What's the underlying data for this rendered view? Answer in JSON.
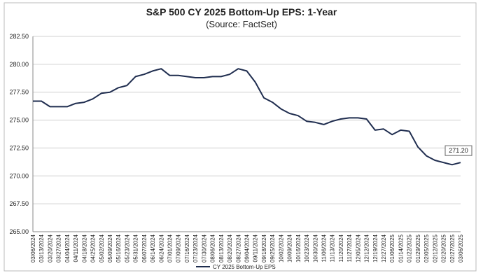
{
  "chart_data": {
    "type": "line",
    "title": "S&P 500 CY 2025 Bottom-Up EPS: 1-Year",
    "subtitle": "(Source: FactSet)",
    "categories": [
      "03/06/2024",
      "03/13/2024",
      "03/20/2024",
      "03/27/2024",
      "04/04/2024",
      "04/11/2024",
      "04/18/2024",
      "04/25/2024",
      "05/02/2024",
      "05/09/2024",
      "05/16/2024",
      "05/23/2024",
      "05/31/2024",
      "06/07/2024",
      "06/14/2024",
      "06/24/2024",
      "07/01/2024",
      "07/09/2024",
      "07/16/2024",
      "07/23/2024",
      "07/30/2024",
      "08/06/2024",
      "08/13/2024",
      "08/20/2024",
      "08/27/2024",
      "09/04/2024",
      "09/11/2024",
      "09/18/2024",
      "09/25/2024",
      "10/02/2024",
      "10/09/2024",
      "10/16/2024",
      "10/23/2024",
      "10/30/2024",
      "11/06/2024",
      "11/13/2024",
      "11/20/2024",
      "11/27/2024",
      "12/05/2024",
      "12/12/2024",
      "12/19/2024",
      "12/27/2024",
      "01/06/2025",
      "01/14/2025",
      "01/22/2025",
      "01/29/2025",
      "02/05/2025",
      "02/12/2025",
      "02/20/2025",
      "02/27/2025",
      "03/06/2025"
    ],
    "series": [
      {
        "name": "CY 2025 Bottom-Up EPS",
        "color": "#1f2d4f",
        "values": [
          276.7,
          276.7,
          276.2,
          276.2,
          276.2,
          276.5,
          276.6,
          276.9,
          277.4,
          277.5,
          277.9,
          278.1,
          278.9,
          279.1,
          279.4,
          279.6,
          279.0,
          279.0,
          278.9,
          278.8,
          278.8,
          278.9,
          278.9,
          279.1,
          279.6,
          279.4,
          278.4,
          277.0,
          276.6,
          276.0,
          275.6,
          275.4,
          274.9,
          274.8,
          274.6,
          274.9,
          275.1,
          275.2,
          275.2,
          275.1,
          274.1,
          274.2,
          273.7,
          274.1,
          274.0,
          272.6,
          271.8,
          271.4,
          271.2,
          271.0,
          271.2
        ],
        "value_labels": [
          null,
          null,
          null,
          null,
          null,
          null,
          null,
          null,
          null,
          null,
          null,
          null,
          null,
          null,
          null,
          null,
          null,
          null,
          null,
          null,
          null,
          null,
          null,
          null,
          null,
          null,
          null,
          null,
          null,
          null,
          null,
          null,
          null,
          null,
          null,
          null,
          null,
          null,
          null,
          null,
          null,
          null,
          null,
          null,
          null,
          null,
          null,
          null,
          null,
          null,
          "271.20"
        ]
      }
    ],
    "ylim": [
      265,
      282.5
    ],
    "yticks": [
      {
        "value": 265,
        "label": "265.00"
      },
      {
        "value": 267.5,
        "label": "267.50"
      },
      {
        "value": 270,
        "label": "270.00"
      },
      {
        "value": 272.5,
        "label": "272.50"
      },
      {
        "value": 275,
        "label": "275.00"
      },
      {
        "value": 277.5,
        "label": "277.50"
      },
      {
        "value": 280,
        "label": "280.00"
      },
      {
        "value": 282.5,
        "label": "282.50"
      }
    ],
    "grid": true,
    "legend": "bottom"
  }
}
